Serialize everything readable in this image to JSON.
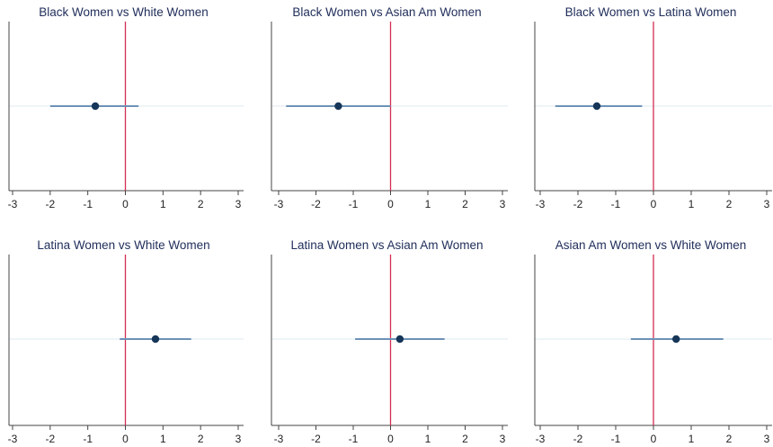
{
  "colors": {
    "zero_line": "#d42e52",
    "ci_line": "#6e92b6",
    "point": "#163659",
    "axis": "#444444",
    "guide": "#dfe8f0",
    "title": "#1f2d5a"
  },
  "chart_data": [
    {
      "type": "scatter",
      "title": "Black Women vs White Women",
      "estimate": -0.8,
      "ci": [
        -2.0,
        0.35
      ],
      "xlim": [
        -3,
        3
      ],
      "xticks": [
        "-3",
        "-2",
        "-1",
        "0",
        "1",
        "2",
        "3"
      ],
      "reference_line": 0
    },
    {
      "type": "scatter",
      "title": "Black Women vs Asian Am Women",
      "estimate": -1.4,
      "ci": [
        -2.8,
        0.0
      ],
      "xlim": [
        -3,
        3
      ],
      "xticks": [
        "-3",
        "-2",
        "-1",
        "0",
        "1",
        "2",
        "3"
      ],
      "reference_line": 0
    },
    {
      "type": "scatter",
      "title": "Black Women vs Latina Women",
      "estimate": -1.5,
      "ci": [
        -2.6,
        -0.3
      ],
      "xlim": [
        -3,
        3
      ],
      "xticks": [
        "-3",
        "-2",
        "-1",
        "0",
        "1",
        "2",
        "3"
      ],
      "reference_line": 0
    },
    {
      "type": "scatter",
      "title": "Latina Women vs White Women",
      "estimate": 0.8,
      "ci": [
        -0.15,
        1.75
      ],
      "xlim": [
        -3,
        3
      ],
      "xticks": [
        "-3",
        "-2",
        "-1",
        "0",
        "1",
        "2",
        "3"
      ],
      "reference_line": 0
    },
    {
      "type": "scatter",
      "title": "Latina Women vs Asian Am Women",
      "estimate": 0.25,
      "ci": [
        -0.95,
        1.45
      ],
      "xlim": [
        -3,
        3
      ],
      "xticks": [
        "-3",
        "-2",
        "-1",
        "0",
        "1",
        "2",
        "3"
      ],
      "reference_line": 0
    },
    {
      "type": "scatter",
      "title": "Asian Am Women vs White Women",
      "estimate": 0.6,
      "ci": [
        -0.6,
        1.85
      ],
      "xlim": [
        -3,
        3
      ],
      "xticks": [
        "-3",
        "-2",
        "-1",
        "0",
        "1",
        "2",
        "3"
      ],
      "reference_line": 0
    }
  ]
}
